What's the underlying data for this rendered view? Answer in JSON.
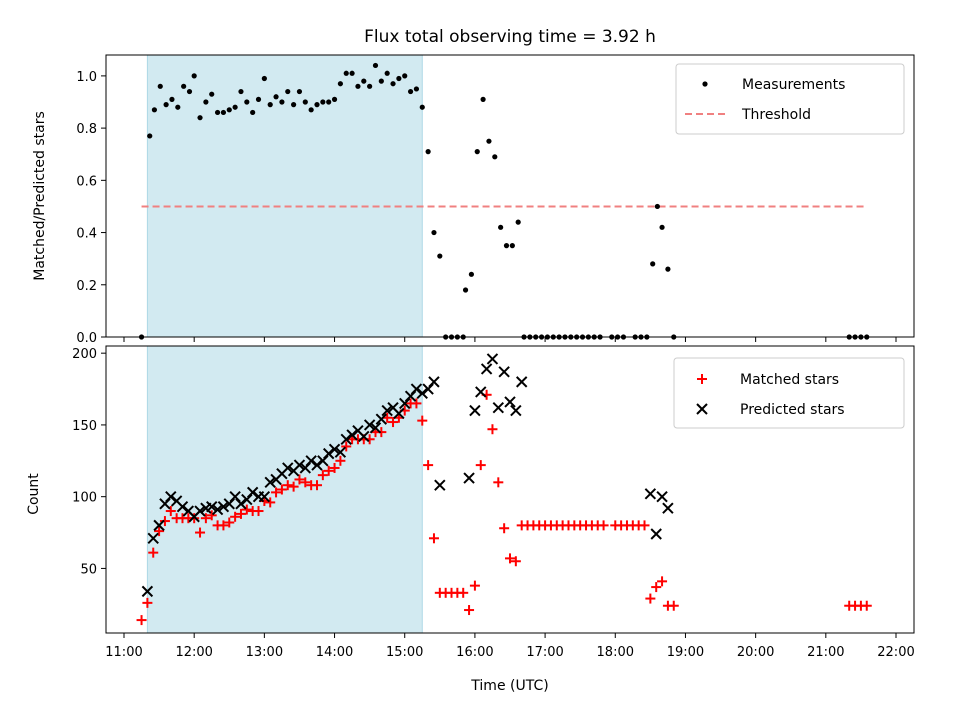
{
  "chart_data": [
    {
      "type": "scatter",
      "title": "Flux total observing time = 3.92 h",
      "xlabel": "",
      "ylabel": "Matched/Predicted stars",
      "xlim": [
        "11:00",
        "22:00"
      ],
      "ylim": [
        0,
        1.08
      ],
      "yticks": [
        "0.0",
        "0.2",
        "0.4",
        "0.6",
        "0.8",
        "1.0"
      ],
      "shaded_interval": [
        "11:20",
        "15:15"
      ],
      "shade_color": "#add8e6",
      "legend_position": "top-right",
      "series": [
        {
          "name": "Measurements",
          "marker": "dot",
          "color": "#000000",
          "points": [
            [
              "11:15",
              0.0
            ],
            [
              "11:22",
              0.77
            ],
            [
              "11:26",
              0.87
            ],
            [
              "11:31",
              0.96
            ],
            [
              "11:36",
              0.89
            ],
            [
              "11:41",
              0.91
            ],
            [
              "11:46",
              0.88
            ],
            [
              "11:51",
              0.96
            ],
            [
              "11:56",
              0.94
            ],
            [
              "12:00",
              1.0
            ],
            [
              "12:05",
              0.84
            ],
            [
              "12:10",
              0.9
            ],
            [
              "12:15",
              0.93
            ],
            [
              "12:20",
              0.86
            ],
            [
              "12:25",
              0.86
            ],
            [
              "12:30",
              0.87
            ],
            [
              "12:35",
              0.88
            ],
            [
              "12:40",
              0.94
            ],
            [
              "12:45",
              0.9
            ],
            [
              "12:50",
              0.86
            ],
            [
              "12:55",
              0.91
            ],
            [
              "13:00",
              0.99
            ],
            [
              "13:05",
              0.89
            ],
            [
              "13:10",
              0.92
            ],
            [
              "13:15",
              0.9
            ],
            [
              "13:20",
              0.94
            ],
            [
              "13:25",
              0.89
            ],
            [
              "13:30",
              0.94
            ],
            [
              "13:35",
              0.9
            ],
            [
              "13:40",
              0.87
            ],
            [
              "13:45",
              0.89
            ],
            [
              "13:50",
              0.9
            ],
            [
              "13:55",
              0.9
            ],
            [
              "14:00",
              0.91
            ],
            [
              "14:05",
              0.97
            ],
            [
              "14:10",
              1.01
            ],
            [
              "14:15",
              1.01
            ],
            [
              "14:20",
              0.96
            ],
            [
              "14:25",
              0.98
            ],
            [
              "14:30",
              0.96
            ],
            [
              "14:35",
              1.04
            ],
            [
              "14:40",
              0.98
            ],
            [
              "14:45",
              1.01
            ],
            [
              "14:50",
              0.97
            ],
            [
              "14:55",
              0.99
            ],
            [
              "15:00",
              1.0
            ],
            [
              "15:05",
              0.94
            ],
            [
              "15:10",
              0.95
            ],
            [
              "15:15",
              0.88
            ],
            [
              "15:20",
              0.71
            ],
            [
              "15:25",
              0.4
            ],
            [
              "15:30",
              0.31
            ],
            [
              "15:35",
              0.0
            ],
            [
              "15:40",
              0.0
            ],
            [
              "15:45",
              0.0
            ],
            [
              "15:50",
              0.0
            ],
            [
              "15:52",
              0.18
            ],
            [
              "15:57",
              0.24
            ],
            [
              "16:02",
              0.71
            ],
            [
              "16:07",
              0.91
            ],
            [
              "16:12",
              0.75
            ],
            [
              "16:17",
              0.69
            ],
            [
              "16:22",
              0.42
            ],
            [
              "16:27",
              0.35
            ],
            [
              "16:32",
              0.35
            ],
            [
              "16:37",
              0.44
            ],
            [
              "16:42",
              0.0
            ],
            [
              "16:47",
              0.0
            ],
            [
              "16:52",
              0.0
            ],
            [
              "16:57",
              0.0
            ],
            [
              "17:02",
              0.0
            ],
            [
              "17:07",
              0.0
            ],
            [
              "17:12",
              0.0
            ],
            [
              "17:17",
              0.0
            ],
            [
              "17:22",
              0.0
            ],
            [
              "17:27",
              0.0
            ],
            [
              "17:32",
              0.0
            ],
            [
              "17:37",
              0.0
            ],
            [
              "17:42",
              0.0
            ],
            [
              "17:47",
              0.0
            ],
            [
              "17:57",
              0.0
            ],
            [
              "18:02",
              0.0
            ],
            [
              "18:07",
              0.0
            ],
            [
              "18:17",
              0.0
            ],
            [
              "18:22",
              0.0
            ],
            [
              "18:27",
              0.0
            ],
            [
              "18:32",
              0.28
            ],
            [
              "18:36",
              0.5
            ],
            [
              "18:40",
              0.42
            ],
            [
              "18:45",
              0.26
            ],
            [
              "18:50",
              0.0
            ],
            [
              "21:20",
              0.0
            ],
            [
              "21:25",
              0.0
            ],
            [
              "21:30",
              0.0
            ],
            [
              "21:35",
              0.0
            ]
          ]
        },
        {
          "name": "Threshold",
          "style": "dashed",
          "color": "#f08080",
          "points": [
            [
              "11:15",
              0.5
            ],
            [
              "21:35",
              0.5
            ]
          ]
        }
      ]
    },
    {
      "type": "scatter",
      "title": "",
      "xlabel": "Time (UTC)",
      "ylabel": "Count",
      "xlim": [
        "11:00",
        "22:00"
      ],
      "ylim": [
        5,
        205
      ],
      "yticks": [
        "50",
        "100",
        "150",
        "200"
      ],
      "xticks": [
        "11:00",
        "12:00",
        "13:00",
        "14:00",
        "15:00",
        "16:00",
        "17:00",
        "18:00",
        "19:00",
        "20:00",
        "21:00",
        "22:00"
      ],
      "shaded_interval": [
        "11:20",
        "15:15"
      ],
      "shade_color": "#add8e6",
      "legend_position": "top-right",
      "series": [
        {
          "name": "Matched stars",
          "marker": "plus",
          "color": "#ff0000",
          "points": [
            [
              "11:15",
              14
            ],
            [
              "11:20",
              26
            ],
            [
              "11:25",
              61
            ],
            [
              "11:30",
              76
            ],
            [
              "11:35",
              83
            ],
            [
              "11:40",
              90
            ],
            [
              "11:45",
              85
            ],
            [
              "11:50",
              85
            ],
            [
              "11:55",
              85
            ],
            [
              "12:00",
              85
            ],
            [
              "12:05",
              75
            ],
            [
              "12:10",
              85
            ],
            [
              "12:15",
              87
            ],
            [
              "12:20",
              80
            ],
            [
              "12:25",
              80
            ],
            [
              "12:30",
              82
            ],
            [
              "12:35",
              86
            ],
            [
              "12:40",
              88
            ],
            [
              "12:45",
              91
            ],
            [
              "12:50",
              90
            ],
            [
              "12:55",
              90
            ],
            [
              "13:00",
              97
            ],
            [
              "13:05",
              96
            ],
            [
              "13:10",
              103
            ],
            [
              "13:15",
              105
            ],
            [
              "13:20",
              108
            ],
            [
              "13:25",
              107
            ],
            [
              "13:30",
              112
            ],
            [
              "13:35",
              110
            ],
            [
              "13:40",
              108
            ],
            [
              "13:45",
              108
            ],
            [
              "13:50",
              115
            ],
            [
              "13:55",
              118
            ],
            [
              "14:00",
              120
            ],
            [
              "14:05",
              125
            ],
            [
              "14:10",
              135
            ],
            [
              "14:15",
              140
            ],
            [
              "14:20",
              140
            ],
            [
              "14:25",
              140
            ],
            [
              "14:30",
              140
            ],
            [
              "14:35",
              145
            ],
            [
              "14:40",
              145
            ],
            [
              "14:45",
              155
            ],
            [
              "14:50",
              152
            ],
            [
              "14:55",
              155
            ],
            [
              "15:00",
              160
            ],
            [
              "15:05",
              165
            ],
            [
              "15:10",
              165
            ],
            [
              "15:15",
              153
            ],
            [
              "15:20",
              122
            ],
            [
              "15:25",
              71
            ],
            [
              "15:30",
              33
            ],
            [
              "15:35",
              33
            ],
            [
              "15:40",
              33
            ],
            [
              "15:45",
              33
            ],
            [
              "15:50",
              33
            ],
            [
              "15:55",
              21
            ],
            [
              "16:00",
              38
            ],
            [
              "16:05",
              122
            ],
            [
              "16:10",
              171
            ],
            [
              "16:15",
              147
            ],
            [
              "16:20",
              110
            ],
            [
              "16:25",
              78
            ],
            [
              "16:30",
              57
            ],
            [
              "16:35",
              55
            ],
            [
              "16:40",
              80
            ],
            [
              "16:45",
              80
            ],
            [
              "16:50",
              80
            ],
            [
              "16:55",
              80
            ],
            [
              "17:00",
              80
            ],
            [
              "17:05",
              80
            ],
            [
              "17:10",
              80
            ],
            [
              "17:15",
              80
            ],
            [
              "17:20",
              80
            ],
            [
              "17:25",
              80
            ],
            [
              "17:30",
              80
            ],
            [
              "17:35",
              80
            ],
            [
              "17:40",
              80
            ],
            [
              "17:45",
              80
            ],
            [
              "17:50",
              80
            ],
            [
              "18:00",
              80
            ],
            [
              "18:05",
              80
            ],
            [
              "18:10",
              80
            ],
            [
              "18:15",
              80
            ],
            [
              "18:20",
              80
            ],
            [
              "18:25",
              80
            ],
            [
              "18:30",
              29
            ],
            [
              "18:35",
              37
            ],
            [
              "18:40",
              41
            ],
            [
              "18:45",
              24
            ],
            [
              "18:50",
              24
            ],
            [
              "21:20",
              24
            ],
            [
              "21:25",
              24
            ],
            [
              "21:30",
              24
            ],
            [
              "21:35",
              24
            ]
          ]
        },
        {
          "name": "Predicted stars",
          "marker": "x",
          "color": "#000000",
          "points": [
            [
              "11:20",
              34
            ],
            [
              "11:25",
              71
            ],
            [
              "11:30",
              80
            ],
            [
              "11:35",
              95
            ],
            [
              "11:40",
              100
            ],
            [
              "11:45",
              97
            ],
            [
              "11:50",
              93
            ],
            [
              "11:55",
              90
            ],
            [
              "12:00",
              86
            ],
            [
              "12:05",
              90
            ],
            [
              "12:10",
              92
            ],
            [
              "12:15",
              93
            ],
            [
              "12:20",
              91
            ],
            [
              "12:25",
              93
            ],
            [
              "12:30",
              95
            ],
            [
              "12:35",
              100
            ],
            [
              "12:40",
              95
            ],
            [
              "12:45",
              98
            ],
            [
              "12:50",
              103
            ],
            [
              "12:55",
              100
            ],
            [
              "13:00",
              100
            ],
            [
              "13:05",
              110
            ],
            [
              "13:10",
              112
            ],
            [
              "13:15",
              116
            ],
            [
              "13:20",
              120
            ],
            [
              "13:25",
              118
            ],
            [
              "13:30",
              122
            ],
            [
              "13:35",
              120
            ],
            [
              "13:40",
              125
            ],
            [
              "13:45",
              122
            ],
            [
              "13:50",
              125
            ],
            [
              "13:55",
              130
            ],
            [
              "14:00",
              133
            ],
            [
              "14:05",
              131
            ],
            [
              "14:10",
              140
            ],
            [
              "14:15",
              143
            ],
            [
              "14:20",
              146
            ],
            [
              "14:25",
              142
            ],
            [
              "14:30",
              150
            ],
            [
              "14:35",
              148
            ],
            [
              "14:40",
              154
            ],
            [
              "14:45",
              160
            ],
            [
              "14:50",
              162
            ],
            [
              "14:55",
              158
            ],
            [
              "15:00",
              165
            ],
            [
              "15:05",
              170
            ],
            [
              "15:10",
              175
            ],
            [
              "15:15",
              172
            ],
            [
              "15:20",
              175
            ],
            [
              "15:25",
              180
            ],
            [
              "15:30",
              108
            ],
            [
              "15:55",
              113
            ],
            [
              "16:00",
              160
            ],
            [
              "16:05",
              173
            ],
            [
              "16:10",
              189
            ],
            [
              "16:15",
              196
            ],
            [
              "16:20",
              162
            ],
            [
              "16:25",
              187
            ],
            [
              "16:30",
              166
            ],
            [
              "16:35",
              160
            ],
            [
              "16:40",
              180
            ],
            [
              "18:30",
              102
            ],
            [
              "18:35",
              74
            ],
            [
              "18:40",
              100
            ],
            [
              "18:45",
              92
            ]
          ]
        }
      ]
    }
  ]
}
